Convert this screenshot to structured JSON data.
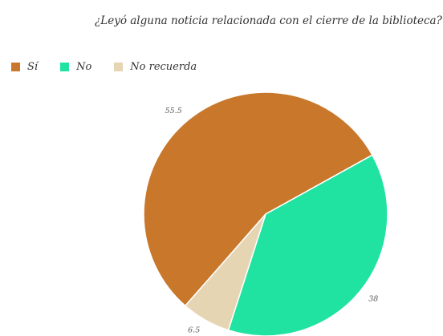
{
  "chart_data": {
    "type": "pie",
    "title": "¿Leyó alguna noticia relacionada con el cierre de la biblioteca?",
    "categories": [
      "Sí",
      "No",
      "No recuerda"
    ],
    "values": [
      55.5,
      38,
      6.5
    ],
    "data_labels": [
      "55.5",
      "38",
      "6.5"
    ],
    "colors": [
      "#c8772b",
      "#20e3a2",
      "#e6d5b3"
    ],
    "legend_position": "top-left"
  }
}
